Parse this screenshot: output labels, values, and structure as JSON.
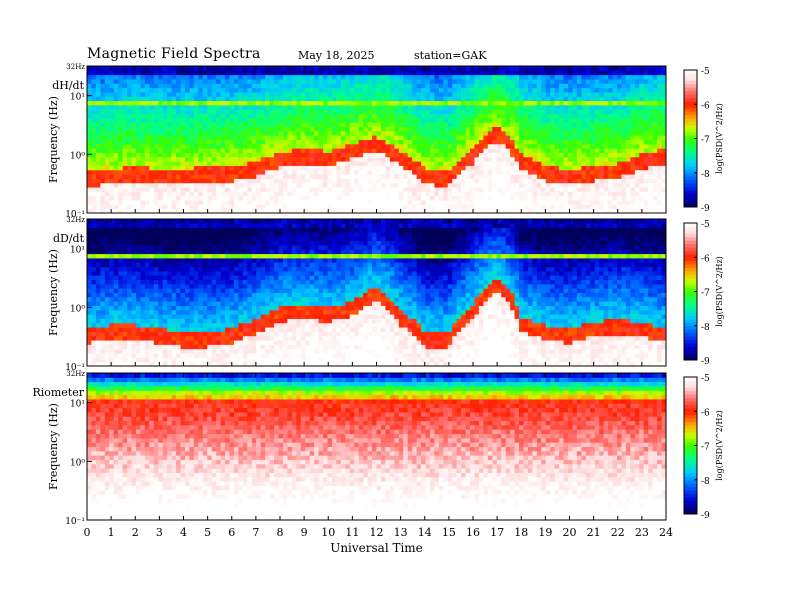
{
  "header": {
    "title": "Magnetic  Field  Spectra",
    "date": "May 18, 2025",
    "station": "station=GAK"
  },
  "chart_data": {
    "type": "heatmap",
    "x_label": "Universal Time",
    "x_ticks": [
      "0",
      "1",
      "2",
      "3",
      "4",
      "5",
      "6",
      "7",
      "8",
      "9",
      "10",
      "11",
      "12",
      "13",
      "14",
      "15",
      "16",
      "17",
      "18",
      "19",
      "20",
      "21",
      "22",
      "23",
      "24"
    ],
    "xlim": [
      0,
      24
    ],
    "colorbar": {
      "label": "log(PSD(V^2/Hz)",
      "ticks": [
        "-5",
        "-6",
        "-7",
        "-8",
        "-9"
      ],
      "range": [
        -9,
        -5
      ],
      "colors": [
        "#000066",
        "#0000ff",
        "#00aaff",
        "#00ff88",
        "#33ff00",
        "#ccff00",
        "#ffaa00",
        "#ff0000",
        "#ffe5e5",
        "#ffffff"
      ]
    },
    "panels": [
      {
        "label": "dH/dt",
        "ylabel": "Frequency  (Hz)",
        "y_top_label": "32Hz",
        "y_ticks": [
          "10¹",
          "10⁰",
          "10⁻¹"
        ],
        "ylim_hz": [
          0.1,
          32
        ],
        "line_hz": 8,
        "base_ridge": [
          0.4,
          0.45,
          0.5,
          0.45,
          0.45,
          0.5,
          0.5,
          0.6,
          0.85,
          1.0,
          0.9,
          1.2,
          1.6,
          0.9,
          0.45,
          0.4,
          1.0,
          2.4,
          0.8,
          0.5,
          0.45,
          0.5,
          0.55,
          0.8,
          1.0
        ],
        "upper_level": -6.6
      },
      {
        "label": "dD/dt",
        "ylabel": "Frequency  (Hz)",
        "y_top_label": "32Hz",
        "y_ticks": [
          "10¹",
          "10⁰",
          "10⁻¹"
        ],
        "ylim_hz": [
          0.1,
          32
        ],
        "line_hz": 8,
        "base_ridge": [
          0.35,
          0.4,
          0.4,
          0.35,
          0.3,
          0.3,
          0.35,
          0.5,
          0.8,
          0.9,
          0.8,
          1.0,
          1.8,
          0.7,
          0.3,
          0.3,
          0.9,
          2.6,
          0.55,
          0.4,
          0.35,
          0.45,
          0.5,
          0.45,
          0.35
        ],
        "upper_level": -7.6
      },
      {
        "label": "Riometer",
        "ylabel": "Frequency  (Hz)",
        "y_top_label": "32Hz",
        "y_ticks": [
          "10¹",
          "10⁰",
          "10⁻¹"
        ],
        "ylim_hz": [
          0.1,
          32
        ],
        "line_hz": 12,
        "base_ridge": [
          4,
          4,
          4,
          4,
          4,
          4,
          4,
          4,
          4,
          4,
          4,
          4,
          4,
          4,
          4,
          4,
          4,
          4,
          4,
          4,
          4,
          4,
          4,
          4,
          4
        ],
        "upper_level": -7.0
      }
    ]
  }
}
